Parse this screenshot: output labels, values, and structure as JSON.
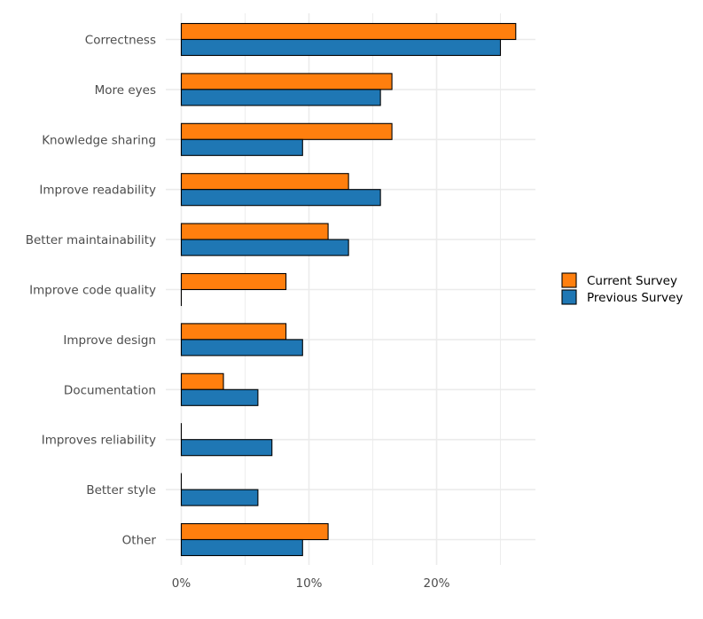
{
  "chart_data": {
    "type": "bar",
    "orientation": "horizontal",
    "title": "",
    "xlabel": "",
    "ylabel": "",
    "xlim": [
      0,
      27.6
    ],
    "x_ticks": [
      0,
      10,
      20
    ],
    "x_tick_labels": [
      "0%",
      "10%",
      "20%"
    ],
    "grid": true,
    "legend_position": "right",
    "categories": [
      "Correctness",
      "More eyes",
      "Knowledge sharing",
      "Improve readability",
      "Better maintainability",
      "Improve code quality",
      "Improve design",
      "Documentation",
      "Improves reliability",
      "Better style",
      "Other"
    ],
    "series": [
      {
        "name": "Current Survey",
        "color": "#ff7f0e",
        "values": [
          26.2,
          16.5,
          16.5,
          13.1,
          11.5,
          8.2,
          8.2,
          3.3,
          0,
          0,
          11.5
        ]
      },
      {
        "name": "Previous Survey",
        "color": "#1f77b4",
        "values": [
          25.0,
          15.6,
          9.5,
          15.6,
          13.1,
          0,
          9.5,
          6.0,
          7.1,
          6.0,
          9.5
        ]
      }
    ]
  }
}
